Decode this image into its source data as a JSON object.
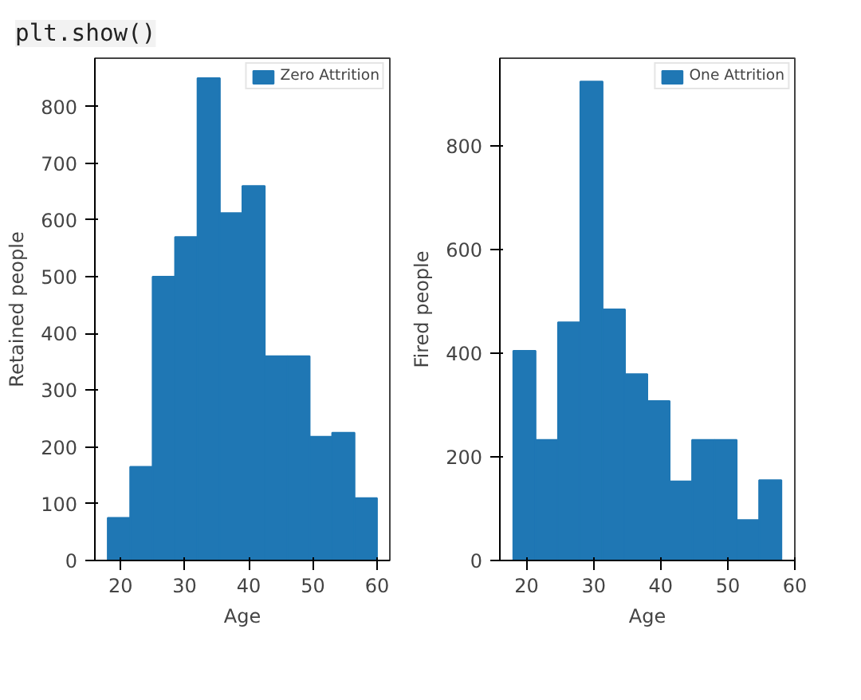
{
  "chart_data": [
    {
      "type": "histogram",
      "annotations": [
        "plt.show()"
      ],
      "xlabel": "Age",
      "ylabel": "Retained people",
      "bins": [
        18,
        21.5,
        25,
        28.5,
        32,
        35.5,
        39,
        42.5,
        46,
        49.5,
        53,
        56.5,
        60
      ],
      "series": [
        {
          "name": "Zero Attrition",
          "color": "#1f77b4",
          "values": [
            75,
            165,
            500,
            570,
            850,
            612,
            660,
            360,
            360,
            218,
            225,
            110
          ]
        }
      ],
      "xlim": [
        16,
        62
      ],
      "ylim": [
        0,
        885
      ],
      "xticks": [
        20,
        30,
        40,
        50,
        60
      ],
      "yticks": [
        0,
        100,
        200,
        300,
        400,
        500,
        600,
        700,
        800
      ],
      "legend": "top right"
    },
    {
      "type": "histogram",
      "xlabel": "Age",
      "ylabel": "Fired people",
      "bins": [
        18,
        21.33,
        24.67,
        28,
        31.33,
        34.67,
        38,
        41.33,
        44.67,
        48,
        51.33,
        54.67,
        58
      ],
      "series": [
        {
          "name": "One Attrition",
          "color": "#1f77b4",
          "values": [
            405,
            233,
            460,
            925,
            485,
            360,
            308,
            153,
            233,
            233,
            78,
            155
          ]
        }
      ],
      "xlim": [
        16,
        60
      ],
      "ylim": [
        0,
        970
      ],
      "xticks": [
        20,
        30,
        40,
        50,
        60
      ],
      "yticks": [
        0,
        200,
        400,
        600,
        800
      ],
      "legend": "top right"
    }
  ]
}
